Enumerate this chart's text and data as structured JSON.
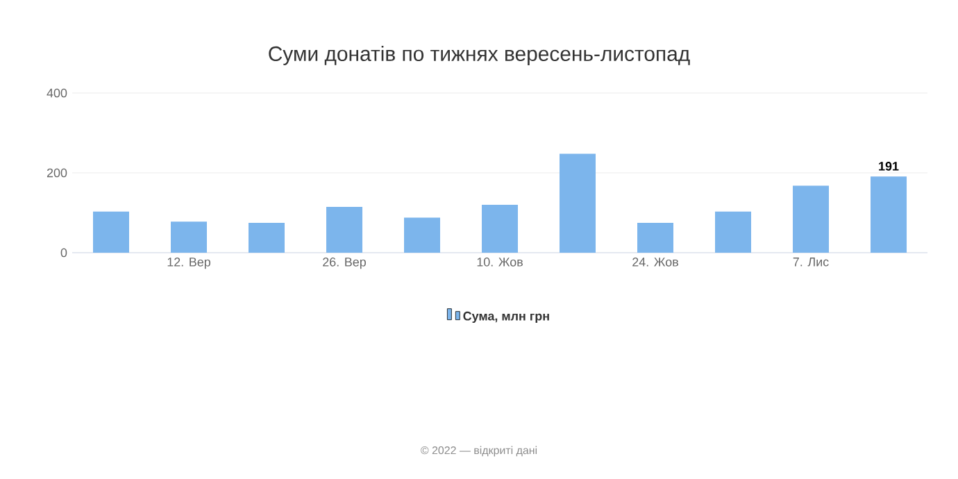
{
  "chart_data": {
    "type": "bar",
    "title": "Суми донатів по тижнях вересень-листопад",
    "categories": [
      null,
      "12. Вер",
      null,
      "26. Вер",
      null,
      "10. Жов",
      null,
      "24. Жов",
      null,
      "7. Лис",
      null
    ],
    "series": [
      {
        "name": "Сума, млн грн",
        "color": "#7cb5ec",
        "values": [
          103,
          78,
          75,
          115,
          88,
          120,
          248,
          75,
          103,
          168,
          191
        ],
        "value_labels": [
          null,
          null,
          null,
          null,
          null,
          null,
          null,
          null,
          null,
          null,
          "191"
        ]
      }
    ],
    "ylim": [
      0,
      400
    ],
    "yticks": [
      0,
      200,
      400
    ],
    "grid": "y",
    "legend": "bottom",
    "annotations": [
      "© 2022 — відкриті дані"
    ]
  }
}
